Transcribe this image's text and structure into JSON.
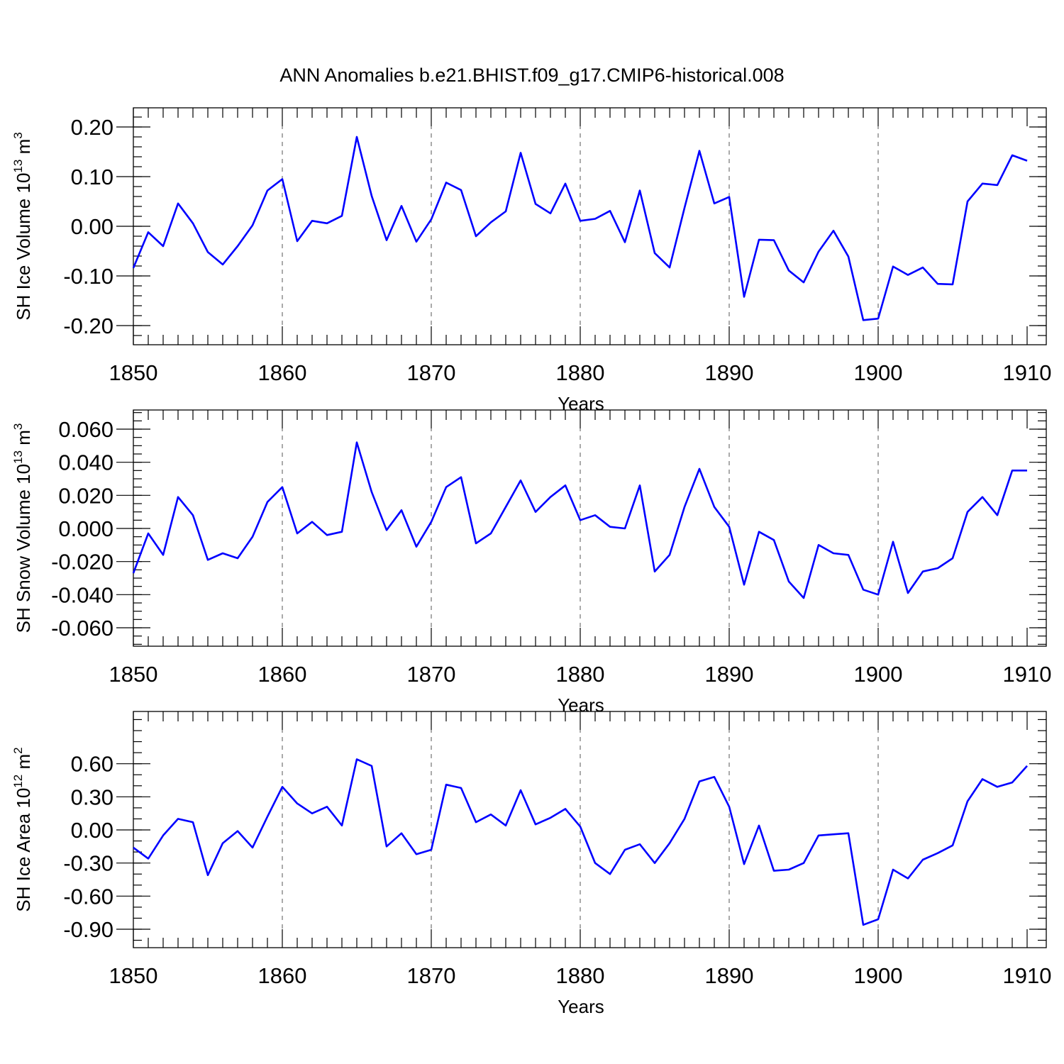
{
  "title": "ANN Anomalies b.e21.BHIST.f09_g17.CMIP6-historical.008",
  "chart_data": [
    {
      "type": "line",
      "xlabel": "Years",
      "ylabel": "SH Ice Volume 10",
      "ylabel_exp": "13",
      "ylabel_unit": " m",
      "ylabel_unit_exp": "3",
      "xlim": [
        1850,
        1910
      ],
      "ylim": [
        -0.2,
        0.2
      ],
      "xticks": [
        1850,
        1860,
        1870,
        1880,
        1890,
        1900,
        1910
      ],
      "yticks": [
        -0.2,
        -0.1,
        0.0,
        0.1,
        0.2
      ],
      "ytick_labels": [
        "-0.20",
        "-0.10",
        "0.00",
        "0.10",
        "0.20"
      ],
      "minor_ystep": 0.02,
      "vgrid": true,
      "line_color": "#0000ff",
      "x": [
        1850,
        1851,
        1852,
        1853,
        1854,
        1855,
        1856,
        1857,
        1858,
        1859,
        1860,
        1861,
        1862,
        1863,
        1864,
        1865,
        1866,
        1867,
        1868,
        1869,
        1870,
        1871,
        1872,
        1873,
        1874,
        1875,
        1876,
        1877,
        1878,
        1879,
        1880,
        1881,
        1882,
        1883,
        1884,
        1885,
        1886,
        1887,
        1888,
        1889,
        1890,
        1891,
        1892,
        1893,
        1894,
        1895,
        1896,
        1897,
        1898,
        1899,
        1900,
        1901,
        1902,
        1903,
        1904,
        1905,
        1906,
        1907,
        1908,
        1909,
        1910
      ],
      "values": [
        -0.084,
        -0.012,
        -0.04,
        0.046,
        0.006,
        -0.052,
        -0.077,
        -0.04,
        0.002,
        0.072,
        0.095,
        -0.03,
        0.011,
        0.006,
        0.021,
        0.18,
        0.061,
        -0.028,
        0.041,
        -0.031,
        0.014,
        0.088,
        0.073,
        -0.02,
        0.008,
        0.03,
        0.148,
        0.045,
        0.026,
        0.086,
        0.011,
        0.015,
        0.031,
        -0.032,
        0.072,
        -0.054,
        -0.083,
        0.037,
        0.152,
        0.046,
        0.059,
        -0.142,
        -0.027,
        -0.028,
        -0.089,
        -0.113,
        -0.051,
        -0.009,
        -0.061,
        -0.189,
        -0.186,
        -0.081,
        -0.098,
        -0.083,
        -0.116,
        -0.117,
        0.05,
        0.086,
        0.083,
        0.143,
        0.132
      ]
    },
    {
      "type": "line",
      "xlabel": "Years",
      "ylabel": "SH Snow Volume 10",
      "ylabel_exp": "13",
      "ylabel_unit": " m",
      "ylabel_unit_exp": "3",
      "xlim": [
        1850,
        1910
      ],
      "ylim": [
        -0.06,
        0.06
      ],
      "xticks": [
        1850,
        1860,
        1870,
        1880,
        1890,
        1900,
        1910
      ],
      "yticks": [
        -0.06,
        -0.04,
        -0.02,
        0.0,
        0.02,
        0.04,
        0.06
      ],
      "ytick_labels": [
        "-0.060",
        "-0.040",
        "-0.020",
        "0.000",
        "0.020",
        "0.040",
        "0.060"
      ],
      "minor_ystep": 0.005,
      "vgrid": true,
      "line_color": "#0000ff",
      "x": [
        1850,
        1851,
        1852,
        1853,
        1854,
        1855,
        1856,
        1857,
        1858,
        1859,
        1860,
        1861,
        1862,
        1863,
        1864,
        1865,
        1866,
        1867,
        1868,
        1869,
        1870,
        1871,
        1872,
        1873,
        1874,
        1875,
        1876,
        1877,
        1878,
        1879,
        1880,
        1881,
        1882,
        1883,
        1884,
        1885,
        1886,
        1887,
        1888,
        1889,
        1890,
        1891,
        1892,
        1893,
        1894,
        1895,
        1896,
        1897,
        1898,
        1899,
        1900,
        1901,
        1902,
        1903,
        1904,
        1905,
        1906,
        1907,
        1908,
        1909,
        1910
      ],
      "values": [
        -0.027,
        -0.003,
        -0.016,
        0.019,
        0.008,
        -0.019,
        -0.015,
        -0.018,
        -0.005,
        0.016,
        0.025,
        -0.003,
        0.004,
        -0.004,
        -0.002,
        0.052,
        0.022,
        -0.001,
        0.011,
        -0.011,
        0.004,
        0.025,
        0.031,
        -0.009,
        -0.003,
        0.013,
        0.029,
        0.01,
        0.019,
        0.026,
        0.005,
        0.008,
        0.001,
        0.0,
        0.026,
        -0.026,
        -0.016,
        0.013,
        0.036,
        0.013,
        0.001,
        -0.034,
        -0.002,
        -0.007,
        -0.032,
        -0.042,
        -0.01,
        -0.015,
        -0.016,
        -0.037,
        -0.04,
        -0.008,
        -0.039,
        -0.026,
        -0.024,
        -0.018,
        0.01,
        0.019,
        0.008,
        0.035,
        0.035
      ]
    },
    {
      "type": "line",
      "xlabel": "Years",
      "ylabel": "SH Ice Area 10",
      "ylabel_exp": "12",
      "ylabel_unit": " m",
      "ylabel_unit_exp": "2",
      "xlim": [
        1850,
        1910
      ],
      "ylim": [
        -0.9,
        0.9
      ],
      "xticks": [
        1850,
        1860,
        1870,
        1880,
        1890,
        1900,
        1910
      ],
      "yticks": [
        -0.9,
        -0.6,
        -0.3,
        0.0,
        0.3,
        0.6
      ],
      "ytick_labels": [
        "-0.90",
        "-0.60",
        "-0.30",
        "0.00",
        "0.30",
        "0.60"
      ],
      "minor_ystep": 0.1,
      "vgrid": true,
      "line_color": "#0000ff",
      "x": [
        1850,
        1851,
        1852,
        1853,
        1854,
        1855,
        1856,
        1857,
        1858,
        1859,
        1860,
        1861,
        1862,
        1863,
        1864,
        1865,
        1866,
        1867,
        1868,
        1869,
        1870,
        1871,
        1872,
        1873,
        1874,
        1875,
        1876,
        1877,
        1878,
        1879,
        1880,
        1881,
        1882,
        1883,
        1884,
        1885,
        1886,
        1887,
        1888,
        1889,
        1890,
        1891,
        1892,
        1893,
        1894,
        1895,
        1896,
        1897,
        1898,
        1899,
        1900,
        1901,
        1902,
        1903,
        1904,
        1905,
        1906,
        1907,
        1908,
        1909,
        1910
      ],
      "values": [
        -0.16,
        -0.26,
        -0.05,
        0.1,
        0.07,
        -0.41,
        -0.12,
        -0.01,
        -0.16,
        0.12,
        0.39,
        0.24,
        0.15,
        0.21,
        0.04,
        0.64,
        0.58,
        -0.15,
        -0.03,
        -0.22,
        -0.18,
        0.41,
        0.38,
        0.07,
        0.14,
        0.04,
        0.36,
        0.05,
        0.11,
        0.19,
        0.03,
        -0.3,
        -0.4,
        -0.18,
        -0.13,
        -0.3,
        -0.12,
        0.1,
        0.44,
        0.48,
        0.21,
        -0.31,
        0.04,
        -0.37,
        -0.36,
        -0.3,
        -0.05,
        -0.04,
        -0.03,
        -0.86,
        -0.81,
        -0.36,
        -0.44,
        -0.27,
        -0.21,
        -0.14,
        0.26,
        0.46,
        0.39,
        0.43,
        0.58
      ]
    }
  ]
}
